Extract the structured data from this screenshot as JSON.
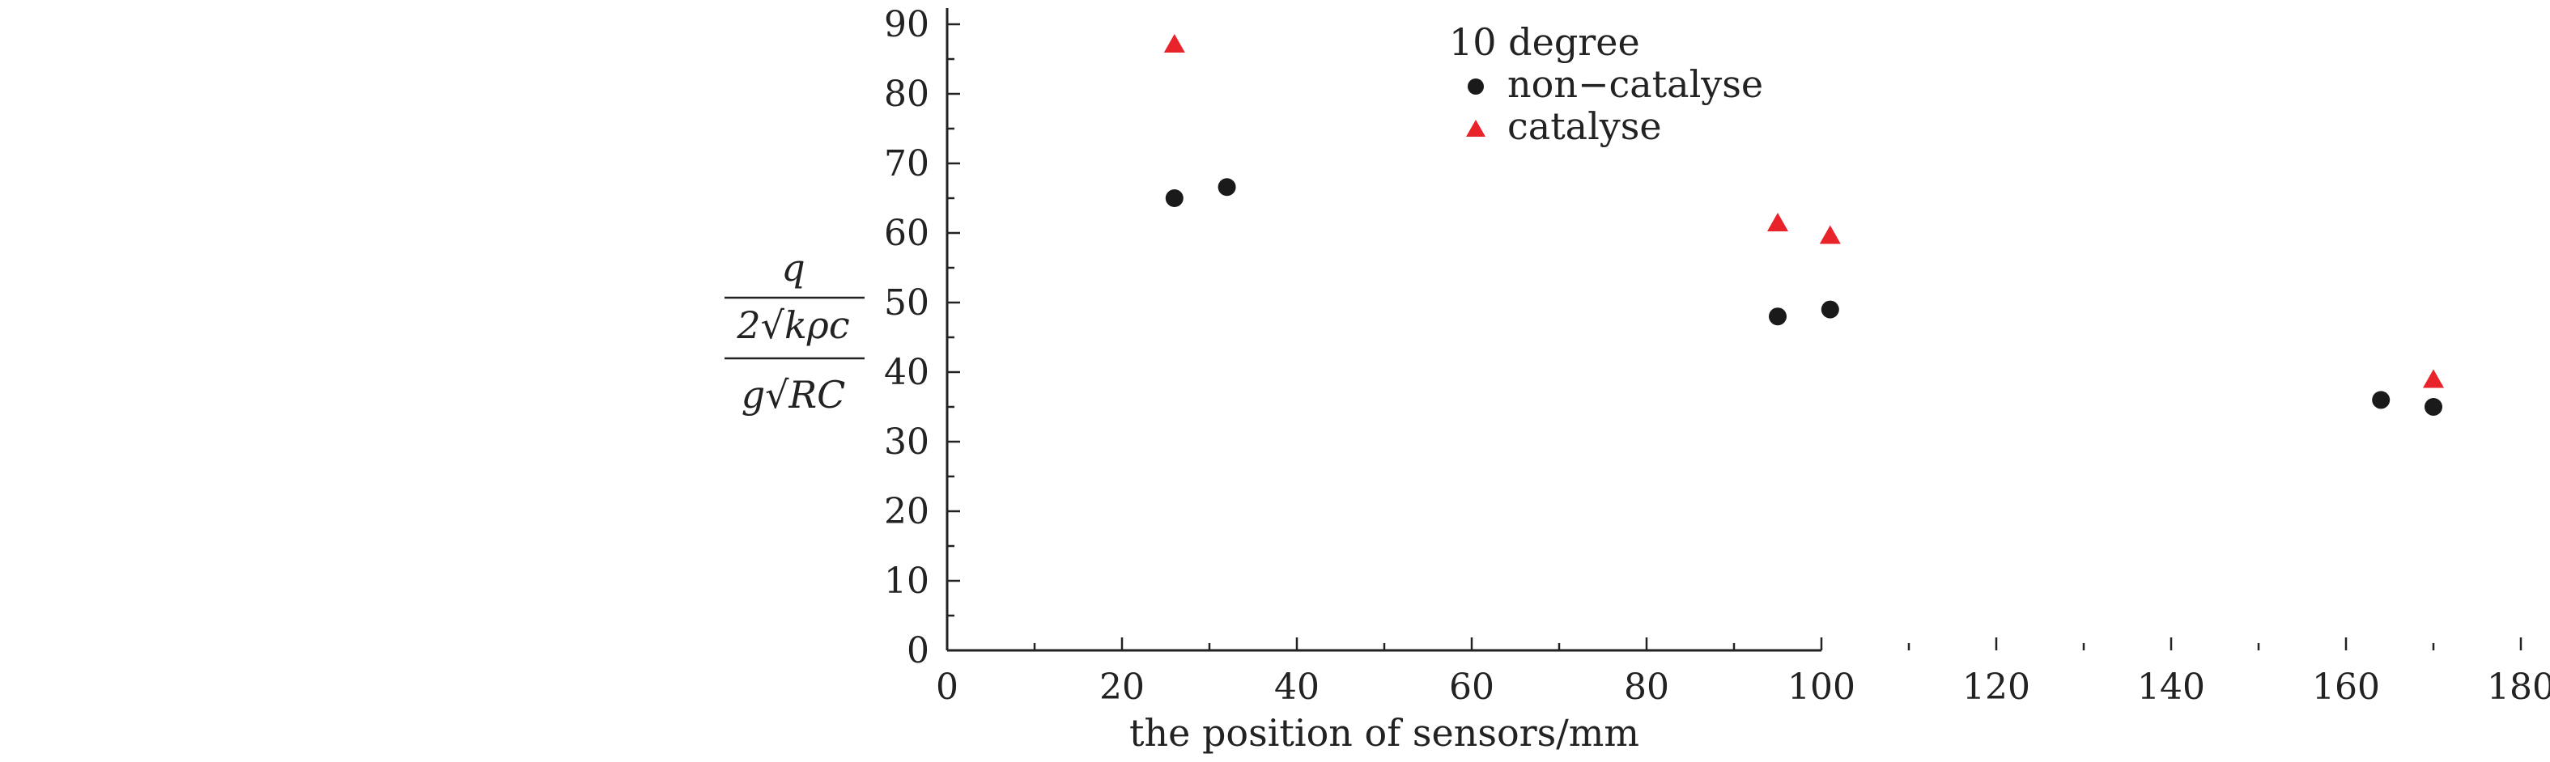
{
  "chart_data": {
    "type": "scatter",
    "title": "",
    "xlabel": "the position of sensors/mm",
    "ylabel": {
      "numerator": "q",
      "middle": "2√kρc",
      "denominator": "g√RC"
    },
    "xlim": [
      0,
      190
    ],
    "ylim": [
      0,
      90
    ],
    "xticks": [
      "0",
      "20",
      "40",
      "60",
      "80",
      "100",
      "120",
      "140",
      "160",
      "180"
    ],
    "yticks": [
      "0",
      "10",
      "20",
      "30",
      "40",
      "50",
      "60",
      "70",
      "80",
      "90"
    ],
    "grid": false,
    "legend_title": "10 degree",
    "legend_position": "top-right",
    "series": [
      {
        "name": "non−catalyse",
        "marker": "circle",
        "color": "#1a1a1a",
        "x": [
          26,
          32,
          95,
          101,
          164,
          170
        ],
        "y": [
          65,
          66.6,
          48,
          49,
          36,
          35
        ]
      },
      {
        "name": "catalyse",
        "marker": "triangle",
        "color": "#e8232a",
        "x": [
          26,
          95,
          101,
          170
        ],
        "y": [
          87,
          61.3,
          59.5,
          38.8
        ]
      }
    ]
  }
}
